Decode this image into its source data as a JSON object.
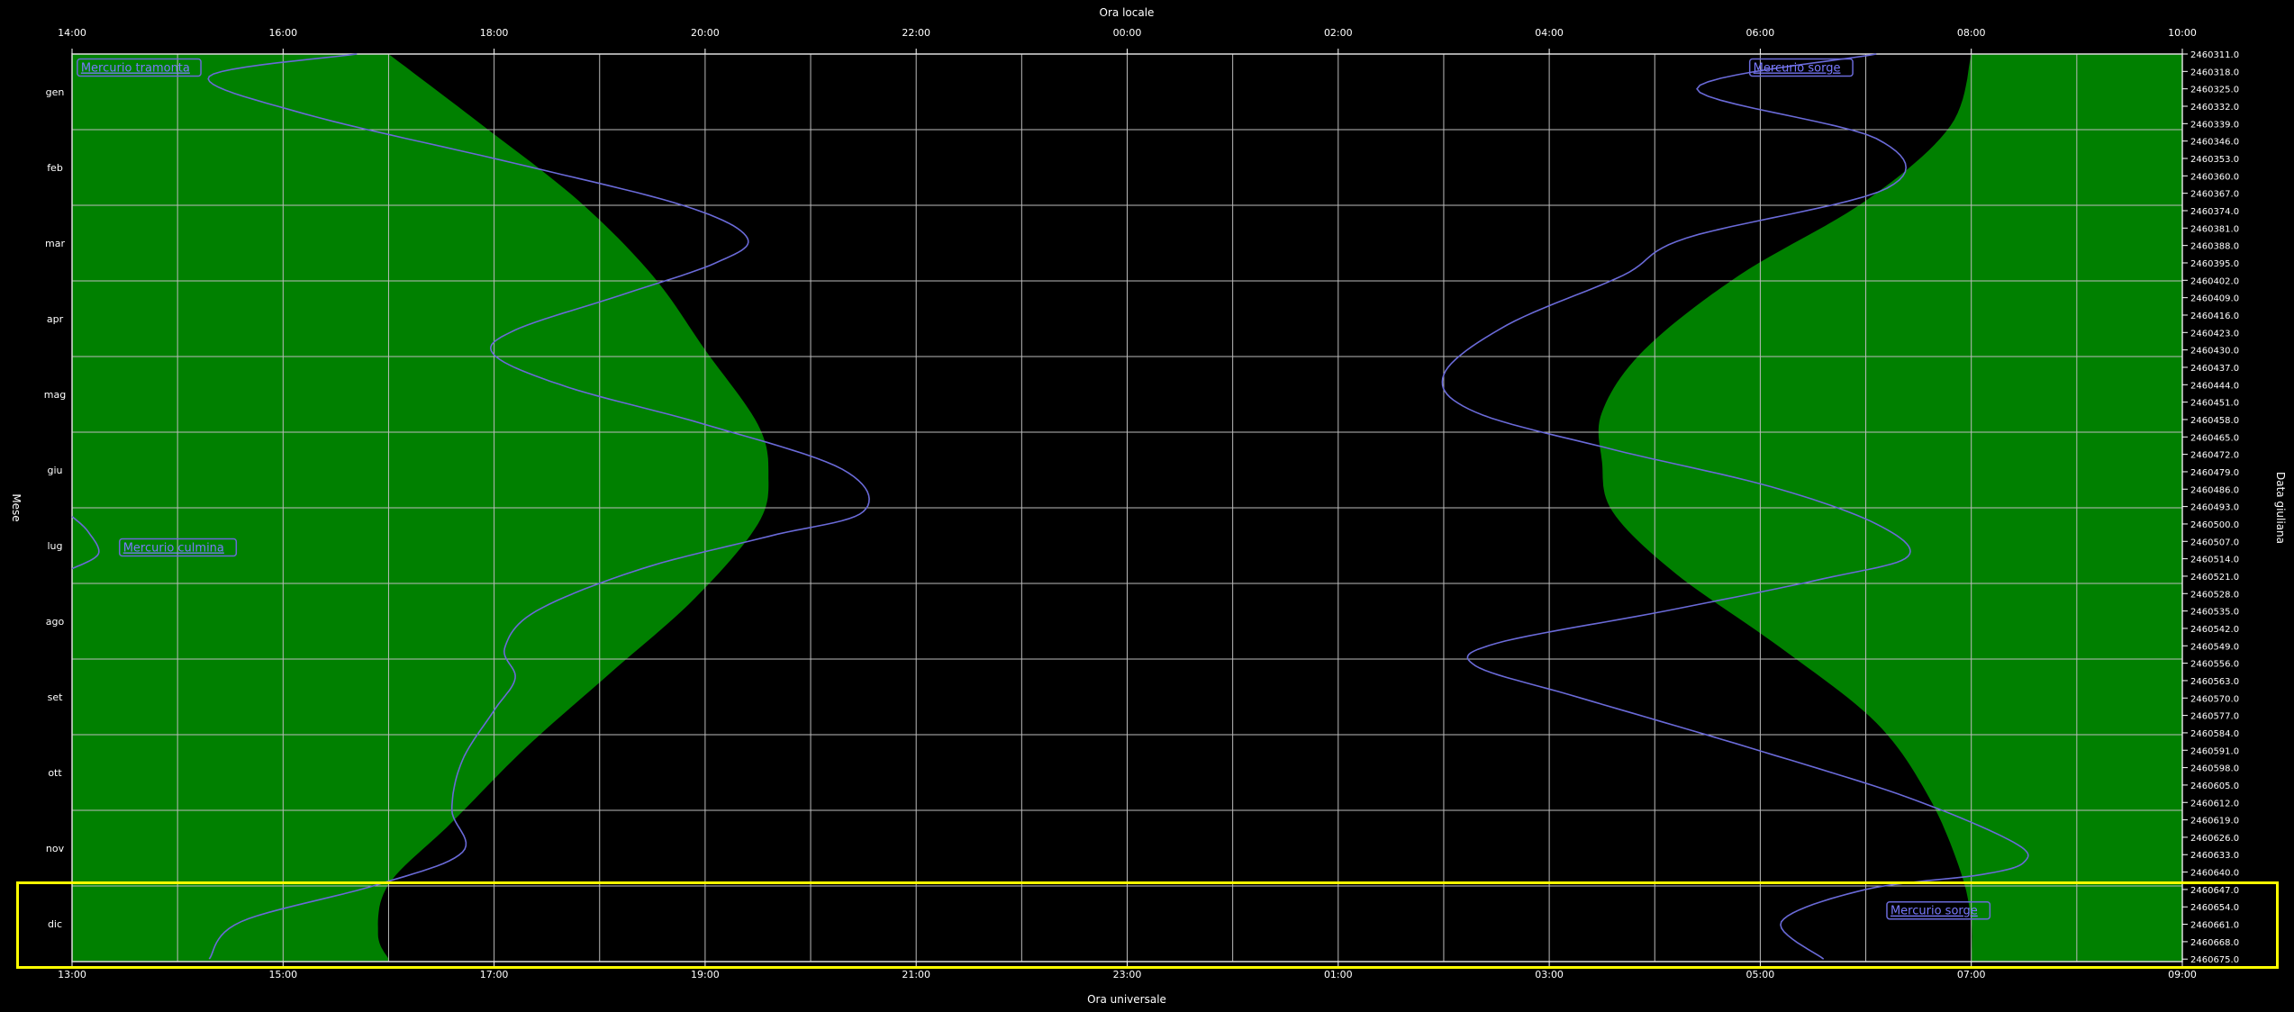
{
  "chart_data": {
    "type": "area",
    "top_axis_label": "Ora locale",
    "bottom_axis_label": "Ora universale",
    "left_axis_label": "Mese",
    "right_axis_label": "Data giuliana",
    "top_ticks": [
      "14:00",
      "16:00",
      "18:00",
      "20:00",
      "22:00",
      "00:00",
      "02:00",
      "04:00",
      "06:00",
      "08:00",
      "10:00"
    ],
    "bottom_ticks": [
      "13:00",
      "15:00",
      "17:00",
      "19:00",
      "21:00",
      "23:00",
      "01:00",
      "03:00",
      "05:00",
      "07:00",
      "09:00"
    ],
    "months": [
      "gen",
      "feb",
      "mar",
      "apr",
      "mag",
      "giu",
      "lug",
      "ago",
      "set",
      "ott",
      "nov",
      "dic"
    ],
    "jd_start": 2460311,
    "jd_step": 7,
    "jd_count": 53,
    "daylight_fill_color": "#008000",
    "mercury_color": "#6a6ad8",
    "x_range_utc_hours": [
      13,
      33
    ],
    "sunset_utc_hours": {
      "jd": [
        2460311,
        2460340,
        2460370,
        2460400,
        2460430,
        2460460,
        2460480,
        2460500,
        2460530,
        2460560,
        2460590,
        2460620,
        2460645,
        2460665,
        2460675
      ],
      "values": [
        16.0,
        16.9,
        17.8,
        18.5,
        19.0,
        19.5,
        19.6,
        19.5,
        18.9,
        18.1,
        17.3,
        16.6,
        16.0,
        15.9,
        16.0
      ]
    },
    "sunrise_utc_hours": {
      "jd": [
        2460311,
        2460340,
        2460370,
        2460400,
        2460430,
        2460455,
        2460475,
        2460495,
        2460520,
        2460550,
        2460580,
        2460610,
        2460640,
        2460660,
        2460675
      ],
      "values": [
        31.0,
        30.8,
        30.0,
        28.8,
        27.9,
        27.5,
        27.5,
        27.6,
        28.2,
        29.2,
        30.1,
        30.6,
        30.9,
        31.0,
        31.0
      ]
    },
    "mercury_set_utc_hours": {
      "jd": [
        2460311,
        2460320,
        2460335,
        2460355,
        2460372,
        2460385,
        2460395,
        2460408,
        2460422,
        2460432,
        2460445,
        2460460,
        2460478,
        2460495,
        2460505,
        2460518,
        2460535,
        2460550,
        2460562,
        2460575,
        2460595,
        2460615,
        2460632,
        2460645,
        2460660,
        2460675
      ],
      "values": [
        15.7,
        14.3,
        15.2,
        17.2,
        18.8,
        19.4,
        19.1,
        18.2,
        17.2,
        17.0,
        17.7,
        19.0,
        20.3,
        20.5,
        19.6,
        18.4,
        17.4,
        17.1,
        17.2,
        17.0,
        16.7,
        16.6,
        16.7,
        15.9,
        14.6,
        14.3
      ]
    },
    "mercury_rise_utc_hours": {
      "jd": [
        2460311,
        2460325,
        2460345,
        2460365,
        2460385,
        2460400,
        2460420,
        2460440,
        2460455,
        2460470,
        2460485,
        2460500,
        2460513,
        2460522,
        2460535,
        2460548,
        2460557,
        2460570,
        2460590,
        2460610,
        2460628,
        2460636,
        2460641,
        2460647,
        2460660,
        2460675
      ],
      "values": [
        30.1,
        28.4,
        30.1,
        30.2,
        28.3,
        27.7,
        26.6,
        26.0,
        26.3,
        27.6,
        29.1,
        30.1,
        30.4,
        29.6,
        28.1,
        26.5,
        26.3,
        27.3,
        28.9,
        30.4,
        31.4,
        31.5,
        31.1,
        30.0,
        29.2,
        29.6
      ]
    },
    "mercury_transit_arc": {
      "jd": [
        2460497,
        2460503,
        2460512,
        2460518
      ],
      "values": [
        13.0,
        13.15,
        13.25,
        13.0
      ]
    },
    "labels": [
      {
        "text": "Mercurio tramonta",
        "utc_hour": 13.05,
        "jd": 2460313
      },
      {
        "text": "Mercurio sorge",
        "utc_hour": 28.9,
        "jd": 2460313
      },
      {
        "text": "Mercurio culmina",
        "utc_hour": 13.45,
        "jd": 2460506
      },
      {
        "text": "Mercurio sorge",
        "utc_hour": 30.2,
        "jd": 2460652
      }
    ]
  }
}
